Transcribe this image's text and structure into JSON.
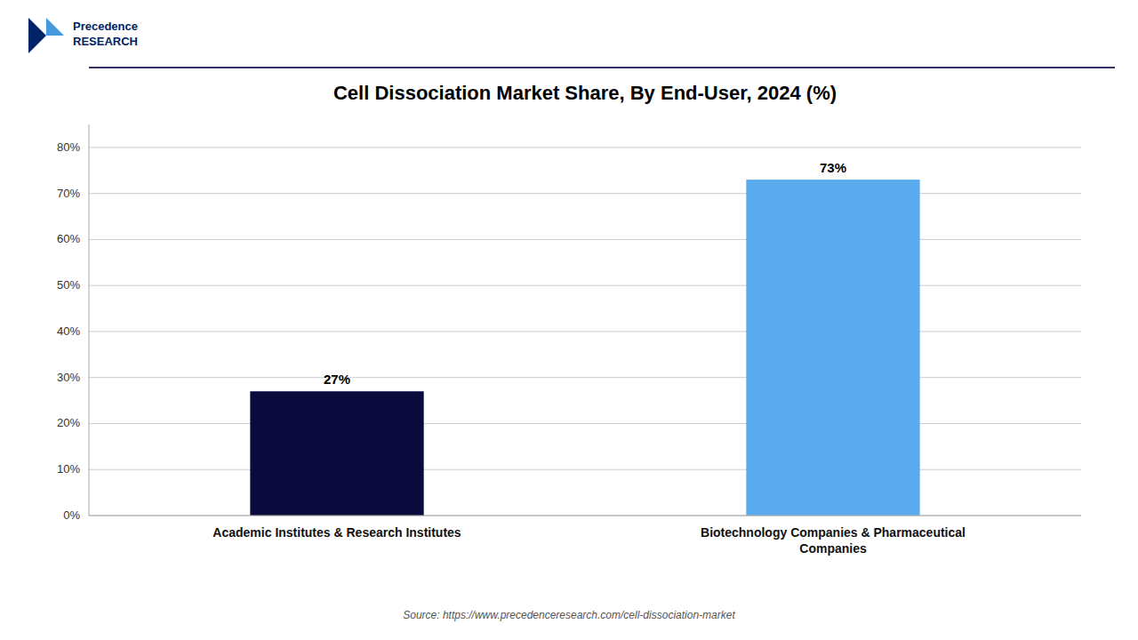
{
  "chart_data": {
    "type": "bar",
    "title": "Cell Dissociation Market Share, By End-User, 2024 (%)",
    "categories": [
      "Academic Institutes & Research Institutes",
      "Biotechnology Companies & Pharmaceutical\nCompanies"
    ],
    "values": [
      27,
      73
    ],
    "value_labels": [
      "27%",
      "73%"
    ],
    "data_labels": true,
    "colors": [
      "#0a0a3c",
      "#5aaaee"
    ],
    "ylim": [
      0,
      85
    ],
    "yticks": [
      {
        "value": 0,
        "label": "0%"
      },
      {
        "value": 10,
        "label": "10%"
      },
      {
        "value": 20,
        "label": "20%"
      },
      {
        "value": 30,
        "label": "30%"
      },
      {
        "value": 40,
        "label": "40%"
      },
      {
        "value": 50,
        "label": "50%"
      },
      {
        "value": 60,
        "label": "60%"
      },
      {
        "value": 70,
        "label": "70%"
      },
      {
        "value": 80,
        "label": "80%"
      }
    ],
    "grid": true,
    "source": "Source: https://www.precedenceresearch.com/cell-dissociation-market",
    "annotations": [
      "Precedence\nRESEARCH"
    ]
  }
}
